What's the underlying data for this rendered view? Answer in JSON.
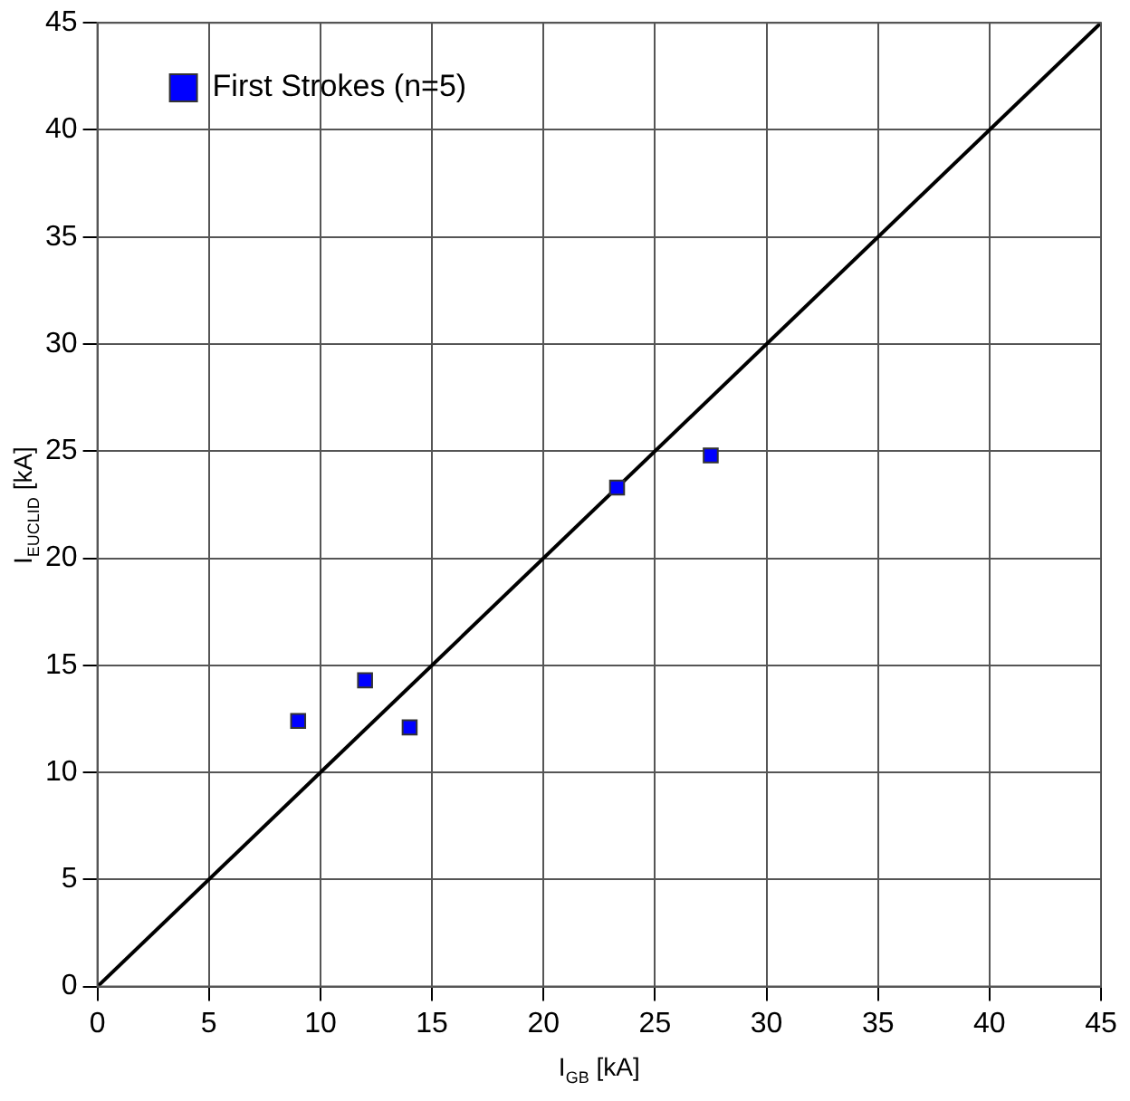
{
  "chart_data": {
    "type": "scatter",
    "xlabel": "I$_{GB}$ [kA]",
    "ylabel": "I$_{EUCLID}$ [kA]",
    "series": [
      {
        "name": "First Strokes (n=5)",
        "color": "#0000ff",
        "x": [
          9.0,
          12.0,
          14.0,
          23.3,
          27.5
        ],
        "values": [
          12.4,
          14.3,
          12.1,
          23.3,
          24.8
        ],
        "marker": "square"
      },
      {
        "type": "line",
        "color": "#000000",
        "x": [
          0,
          45
        ],
        "values": [
          0,
          45
        ],
        "marker": "none",
        "line_style": "solid"
      }
    ],
    "xlim": [
      0,
      45
    ],
    "xticks": [
      0,
      5,
      10,
      15,
      20,
      25,
      30,
      35,
      40,
      45
    ],
    "ylim": [
      0,
      45
    ],
    "yticks": [
      0,
      5,
      10,
      15,
      20,
      25,
      30,
      35,
      40,
      45
    ],
    "grid": true,
    "legend": "top left"
  }
}
